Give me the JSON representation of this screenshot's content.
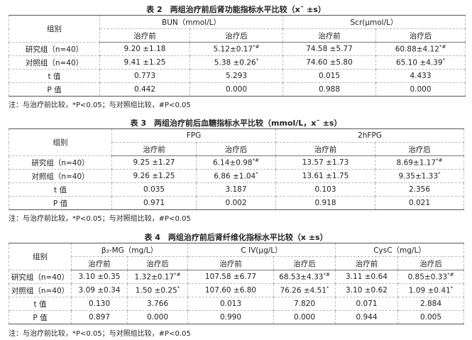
{
  "tables": [
    {
      "caption": "表 2　两组治疗前后肾功能指标水平比较（x¯ ±s）",
      "group_header": "组别",
      "metrics": [
        "BUN（mmol/L）",
        "Scr(μmol/L）"
      ],
      "sub_headers": [
        "治疗前",
        "治疗后"
      ],
      "rows": [
        {
          "label": "研究组（n=40）",
          "cells": [
            [
              "9.20 ±1.18",
              ""
            ],
            [
              "5.12±0.17",
              "*#"
            ],
            [
              "74.58 ±5.77",
              ""
            ],
            [
              "60.88±4.12",
              "*#"
            ]
          ]
        },
        {
          "label": "对照组（n=40）",
          "cells": [
            [
              "9.41 ±1.25",
              ""
            ],
            [
              "5.38 ±0.26",
              "*"
            ],
            [
              "74.60 ±5.80",
              ""
            ],
            [
              "65.10 ±4.39",
              "*"
            ]
          ]
        },
        {
          "label": "t 值",
          "cells": [
            [
              "0.773",
              ""
            ],
            [
              "5.293",
              ""
            ],
            [
              "0.015",
              ""
            ],
            [
              "4.433",
              ""
            ]
          ]
        },
        {
          "label": "P 值",
          "cells": [
            [
              "0.442",
              ""
            ],
            [
              "0.000",
              ""
            ],
            [
              "0.988",
              ""
            ],
            [
              "0.000",
              ""
            ]
          ]
        }
      ],
      "note": "注：与治疗前比较，*P<0.05；与对照组比较，#P<0.05"
    },
    {
      "caption": "表 3　两组治疗前后血糖指标水平比较（mmol/L，x¯ ±s）",
      "group_header": "组别",
      "metrics": [
        "FPG",
        "2hFPG"
      ],
      "sub_headers": [
        "治疗前",
        "治疗后"
      ],
      "rows": [
        {
          "label": "研究组（n=40）",
          "cells": [
            [
              "9.25 ±1.27",
              ""
            ],
            [
              "6.14±0.98",
              "*#"
            ],
            [
              "13.57 ±1.73",
              ""
            ],
            [
              "8.69±1.17",
              "*#"
            ]
          ]
        },
        {
          "label": "对照组（n=40）",
          "cells": [
            [
              "9.26 ±1.25",
              ""
            ],
            [
              "6.86 ±1.04",
              "*"
            ],
            [
              "13.61 ±1.75",
              ""
            ],
            [
              "9.35±1.33",
              "*"
            ]
          ]
        },
        {
          "label": "t 值",
          "cells": [
            [
              "0.035",
              ""
            ],
            [
              "3.187",
              ""
            ],
            [
              "0.103",
              ""
            ],
            [
              "2.356",
              ""
            ]
          ]
        },
        {
          "label": "P 值",
          "cells": [
            [
              "0.971",
              ""
            ],
            [
              "0.002",
              ""
            ],
            [
              "0.918",
              ""
            ],
            [
              "0.021",
              ""
            ]
          ]
        }
      ],
      "note": "注：与治疗前比较，*P<0.05；与对照组比较，#P<0.05"
    },
    {
      "caption": "表 4　两组治疗前后肾纤维化指标水平比较（x ±s）",
      "group_header": "组别",
      "metrics": [
        "β₂-MG（mg/L）",
        "C IV(μg/L）",
        "CysC（mg/L）"
      ],
      "sub_headers": [
        "治疗前",
        "治疗后"
      ],
      "rows": [
        {
          "label": "研究组（n=40）",
          "cells": [
            [
              "3.10 ±0.35",
              ""
            ],
            [
              "1.32±0.17",
              "*#"
            ],
            [
              "107.58 ±6.77",
              ""
            ],
            [
              "68.53±4.33",
              "*#"
            ],
            [
              "3.11 ±0.64",
              ""
            ],
            [
              "0.85±0.33",
              "*#"
            ]
          ]
        },
        {
          "label": "对照组（n=40）",
          "cells": [
            [
              "3.09 ±0.34",
              ""
            ],
            [
              "1.50 ±0.25",
              "*"
            ],
            [
              "107.60 ±6.80",
              ""
            ],
            [
              "76.26 ±4.51",
              "*"
            ],
            [
              "3.10 ±0.62",
              ""
            ],
            [
              "1.09 ±0.41",
              "*"
            ]
          ]
        },
        {
          "label": "t 值",
          "cells": [
            [
              "0.130",
              ""
            ],
            [
              "3.766",
              ""
            ],
            [
              "0.013",
              ""
            ],
            [
              "7.820",
              ""
            ],
            [
              "0.071",
              ""
            ],
            [
              "2.884",
              ""
            ]
          ]
        },
        {
          "label": "P 值",
          "cells": [
            [
              "0.897",
              ""
            ],
            [
              "0.000",
              ""
            ],
            [
              "0.990",
              ""
            ],
            [
              "0.000",
              ""
            ],
            [
              "0.944",
              ""
            ],
            [
              "0.005",
              ""
            ]
          ]
        }
      ],
      "note": "注：与治疗前比较，*P<0.05；与对照组比较，#P<0.05"
    }
  ]
}
